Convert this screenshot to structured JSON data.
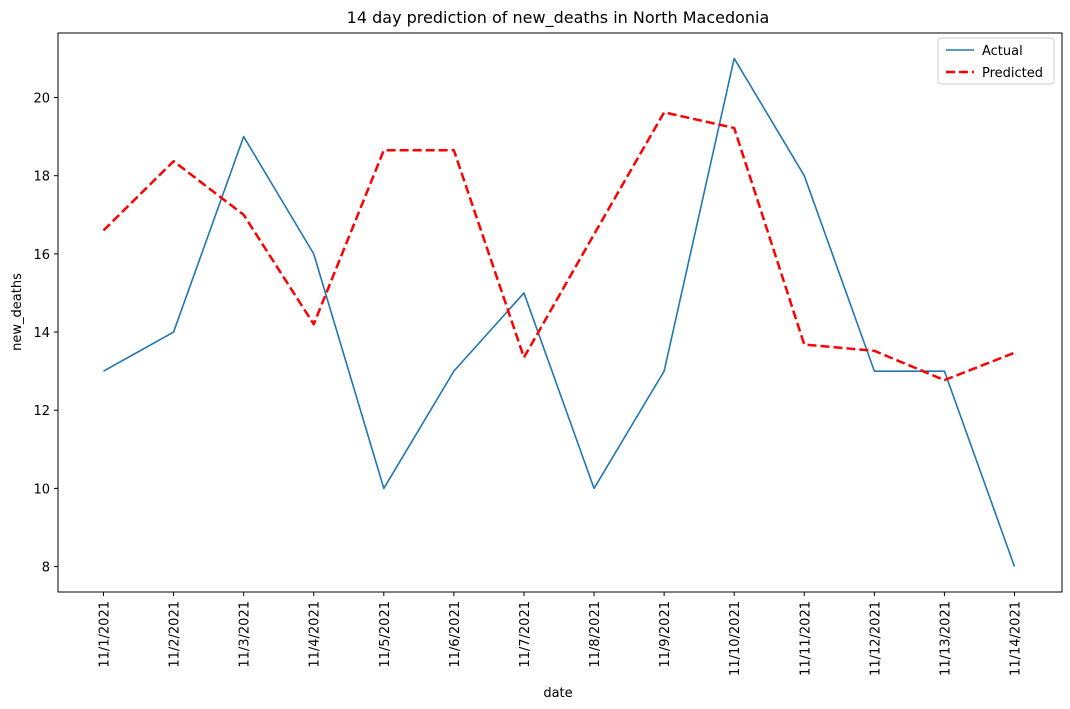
{
  "chart_data": {
    "type": "line",
    "title": "14 day prediction of new_deaths in North Macedonia",
    "xlabel": "date",
    "ylabel": "new_deaths",
    "categories": [
      "11/1/2021",
      "11/2/2021",
      "11/3/2021",
      "11/4/2021",
      "11/5/2021",
      "11/6/2021",
      "11/7/2021",
      "11/8/2021",
      "11/9/2021",
      "11/10/2021",
      "11/11/2021",
      "11/12/2021",
      "11/13/2021",
      "11/14/2021"
    ],
    "y_ticks": [
      8,
      10,
      12,
      14,
      16,
      18,
      20
    ],
    "ylim": [
      7.35,
      21.65
    ],
    "grid": false,
    "legend_position": "top-right",
    "series": [
      {
        "name": "Actual",
        "color": "#1f77b4",
        "style": "solid",
        "values": [
          13,
          14,
          19,
          16,
          10,
          13,
          15,
          10,
          13,
          21,
          18,
          13,
          13,
          8
        ]
      },
      {
        "name": "Predicted",
        "color": "#ff0000",
        "style": "dashed",
        "values": [
          16.6,
          18.37,
          17.0,
          14.2,
          18.65,
          18.65,
          13.35,
          16.5,
          19.62,
          19.22,
          13.68,
          13.52,
          12.77,
          13.47
        ]
      }
    ]
  }
}
